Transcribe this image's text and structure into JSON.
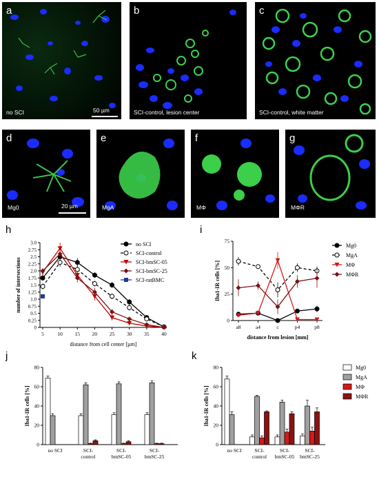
{
  "micrographs": [
    {
      "letter": "a",
      "caption": "no SCI",
      "scale": "50 µm"
    },
    {
      "letter": "b",
      "caption": "SCI-control, lesion center"
    },
    {
      "letter": "c",
      "caption": "SCI-control, white matter"
    },
    {
      "letter": "d",
      "caption": "Mg0",
      "scale": "20 µm"
    },
    {
      "letter": "e",
      "caption": "MgA"
    },
    {
      "letter": "f",
      "caption": "MΦ"
    },
    {
      "letter": "g",
      "caption": "MΦR"
    }
  ],
  "chart_letters": {
    "h": "h",
    "i": "i",
    "j": "j",
    "k": "k"
  },
  "chart_data": [
    {
      "id": "h",
      "type": "line",
      "xlabel": "distance from cell center [µm]",
      "ylabel": "number of intersections",
      "x": [
        5,
        10,
        15,
        20,
        25,
        30,
        35,
        40
      ],
      "xlim": [
        5,
        40
      ],
      "ylim": [
        0,
        3.0
      ],
      "yticks": [
        "0",
        "0.25",
        "0.5",
        "0.75",
        "1.0",
        "1.25",
        "1.5",
        "1.75",
        "2.0",
        "2.25",
        "2.5",
        "2.75",
        "3.0"
      ],
      "xticks": [
        "5",
        "10",
        "15",
        "20",
        "25",
        "30",
        "35",
        "40"
      ],
      "legend_position": "top-right",
      "series": [
        {
          "name": "no SCI",
          "color": "#000000",
          "marker": "circle-filled",
          "dash": "",
          "values": [
            1.75,
            2.5,
            2.3,
            1.85,
            1.5,
            0.9,
            0.35,
            0.02
          ],
          "err": [
            0.1,
            0.15,
            0.15,
            0.1,
            0.1,
            0.1,
            0.05,
            0.02
          ]
        },
        {
          "name": "SCI-control",
          "color": "#000000",
          "marker": "circle-open",
          "dash": "4,3",
          "values": [
            1.45,
            2.3,
            2.05,
            1.55,
            1.1,
            0.7,
            0.3,
            0.02
          ],
          "err": [
            0.1,
            0.15,
            0.15,
            0.1,
            0.1,
            0.1,
            0.05,
            0.02
          ]
        },
        {
          "name": "SCI-bmSC-05",
          "color": "#c00000",
          "marker": "triangle-down",
          "dash": "",
          "values": [
            1.95,
            2.8,
            1.85,
            1.1,
            0.35,
            0.15,
            0.05,
            0.0
          ],
          "err": [
            0.1,
            0.2,
            0.15,
            0.15,
            0.1,
            0.05,
            0.03,
            0.02
          ]
        },
        {
          "name": "SCI-bmSC-25",
          "color": "#7a1010",
          "marker": "diamond",
          "dash": "",
          "values": [
            2.0,
            2.6,
            1.75,
            1.25,
            0.55,
            0.3,
            0.1,
            0.0
          ],
          "err": [
            0.1,
            0.2,
            0.15,
            0.15,
            0.1,
            0.05,
            0.03,
            0.02
          ]
        },
        {
          "name": "SCI-ratBMC",
          "color": "#1f3a93",
          "marker": "square",
          "dash": "",
          "values": [
            1.1,
            null,
            null,
            null,
            null,
            null,
            null,
            null
          ],
          "err": [
            0.05,
            0,
            0,
            0,
            0,
            0,
            0,
            0
          ]
        }
      ]
    },
    {
      "id": "i",
      "type": "line",
      "xlabel": "distance from lesion [mm]",
      "ylabel": "Iba1-IR cells [%]",
      "categories": [
        "a8",
        "a4",
        "c",
        "p4",
        "p8"
      ],
      "ylim": [
        0,
        75
      ],
      "yticks": [
        "0",
        "25",
        "50",
        "75"
      ],
      "legend_position": "top-right",
      "series": [
        {
          "name": "Mg0",
          "color": "#000000",
          "marker": "circle-filled",
          "dash": "",
          "values": [
            6,
            7,
            0,
            9,
            11
          ],
          "err": [
            2,
            2,
            1,
            2,
            3
          ]
        },
        {
          "name": "MgA",
          "color": "#000000",
          "marker": "circle-open",
          "dash": "4,3",
          "values": [
            56,
            51,
            29,
            50,
            47
          ],
          "err": [
            4,
            2,
            7,
            4,
            4
          ]
        },
        {
          "name": "MΦ",
          "color": "#d11a1a",
          "marker": "triangle-down",
          "dash": "",
          "values": [
            5,
            7,
            57,
            1,
            1
          ],
          "err": [
            1,
            2,
            8,
            1,
            1
          ]
        },
        {
          "name": "MΦR",
          "color": "#7a1010",
          "marker": "diamond",
          "dash": "",
          "values": [
            31,
            33,
            13,
            37,
            40
          ],
          "err": [
            8,
            4,
            7,
            6,
            9
          ]
        }
      ]
    },
    {
      "id": "j",
      "type": "bar",
      "ylabel": "Iba1-IR cells [%]",
      "categories": [
        "no SCI",
        "SCI-\ncontrol",
        "SCI-\nbmSC-05",
        "SCI-\nbmSC-25"
      ],
      "ylim": [
        0,
        80
      ],
      "yticks": [
        "0",
        "20",
        "40",
        "60",
        "80"
      ],
      "series": [
        {
          "name": "Mg0",
          "color": "#ffffff",
          "values": [
            69,
            30,
            31,
            31
          ],
          "err": [
            2,
            2,
            2,
            2
          ]
        },
        {
          "name": "MgA",
          "color": "#a0a0a0",
          "values": [
            30,
            62,
            63,
            64
          ],
          "err": [
            2,
            2,
            2,
            2
          ]
        },
        {
          "name": "MΦ",
          "color": "#d11a1a",
          "values": [
            0,
            1,
            1,
            1
          ],
          "err": [
            0,
            0.5,
            0.5,
            0.5
          ]
        },
        {
          "name": "MΦR",
          "color": "#8b1212",
          "values": [
            0,
            4,
            3,
            1
          ],
          "err": [
            0,
            1,
            1,
            0.5
          ]
        }
      ]
    },
    {
      "id": "k",
      "type": "bar",
      "ylabel": "Iba1-IR cells [%]",
      "categories": [
        "no SCI",
        "SCI-\ncontrol",
        "SCI-\nbmSC-05",
        "SCI-\nbmSC-25"
      ],
      "ylim": [
        0,
        80
      ],
      "yticks": [
        "0",
        "20",
        "40",
        "60",
        "80"
      ],
      "legend_position": "top-right",
      "series": [
        {
          "name": "Mg0",
          "color": "#ffffff",
          "values": [
            68,
            8,
            8,
            9
          ],
          "err": [
            3,
            2,
            2,
            2
          ]
        },
        {
          "name": "MgA",
          "color": "#a0a0a0",
          "values": [
            31,
            50,
            44,
            40
          ],
          "err": [
            3,
            1,
            2,
            6
          ]
        },
        {
          "name": "MΦ",
          "color": "#d11a1a",
          "values": [
            0,
            7,
            13,
            14
          ],
          "err": [
            0,
            2,
            3,
            4
          ]
        },
        {
          "name": "MΦR",
          "color": "#8b1212",
          "values": [
            0,
            34,
            32,
            34
          ],
          "err": [
            0,
            1,
            2,
            4
          ]
        }
      ]
    }
  ]
}
